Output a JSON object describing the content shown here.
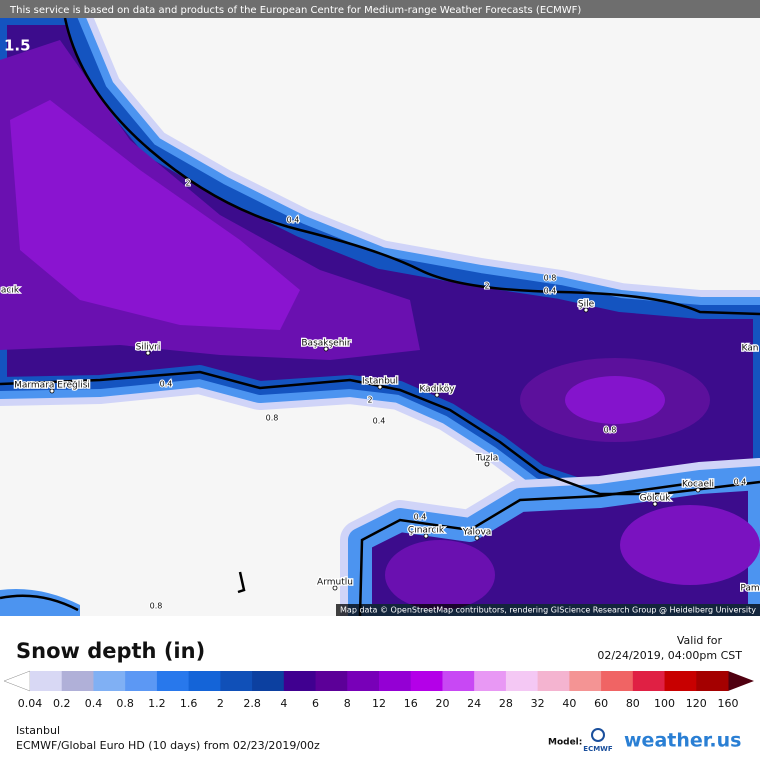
{
  "banner": "This service is based on data and products of the European Centre for Medium-range Weather Forecasts (ECMWF)",
  "corner_value": "1.5",
  "places": [
    "Silivri",
    "Başakşehir",
    "Istanbul",
    "Kadıköy",
    "Marmara Ereğlisi",
    "Şile",
    "Tuzla",
    "Kocaeli",
    "Gölcük",
    "Çınarcık",
    "Yalova",
    "Armutlu",
    "Kan",
    "Pam",
    "acık"
  ],
  "contour_labels": [
    "0.4",
    "0.4",
    "0.8",
    "0.4",
    "0.8",
    "0.4",
    "0.4",
    "0.8",
    "2",
    "2",
    "2",
    "0.8",
    "0.4"
  ],
  "attribution": "Map data © OpenStreetMap contributors, rendering GIScience Research Group @ Heidelberg University",
  "legend": {
    "title": "Snow depth (in)",
    "valid_label": "Valid for",
    "valid_time": "02/24/2019, 04:00pm CST",
    "values": [
      0.04,
      0.2,
      0.4,
      0.8,
      1.2,
      1.6,
      2,
      2.8,
      4,
      6,
      8,
      12,
      16,
      20,
      24,
      28,
      32,
      40,
      60,
      80,
      100,
      120,
      160
    ],
    "colors": [
      "#d8d8f4",
      "#b0b0d8",
      "#80b0f4",
      "#5c98f4",
      "#2878ec",
      "#1464d8",
      "#1050b8",
      "#0c40a0",
      "#400090",
      "#5c0098",
      "#7800b8",
      "#9400d4",
      "#b400e8",
      "#c848f4",
      "#e898f4",
      "#f4c8f4",
      "#f4b4d0",
      "#f49494",
      "#f06464",
      "#e02044",
      "#c80000",
      "#a40000",
      "#7c0000"
    ],
    "under_color": "#ffffff",
    "over_color": "#500010"
  },
  "footer": {
    "location": "Istanbul",
    "model_run": "ECMWF/Global Euro HD (10 days) from 02/23/2019/00z",
    "model_label": "Model:",
    "model_name": "ECMWF",
    "brand": "weather.us"
  }
}
